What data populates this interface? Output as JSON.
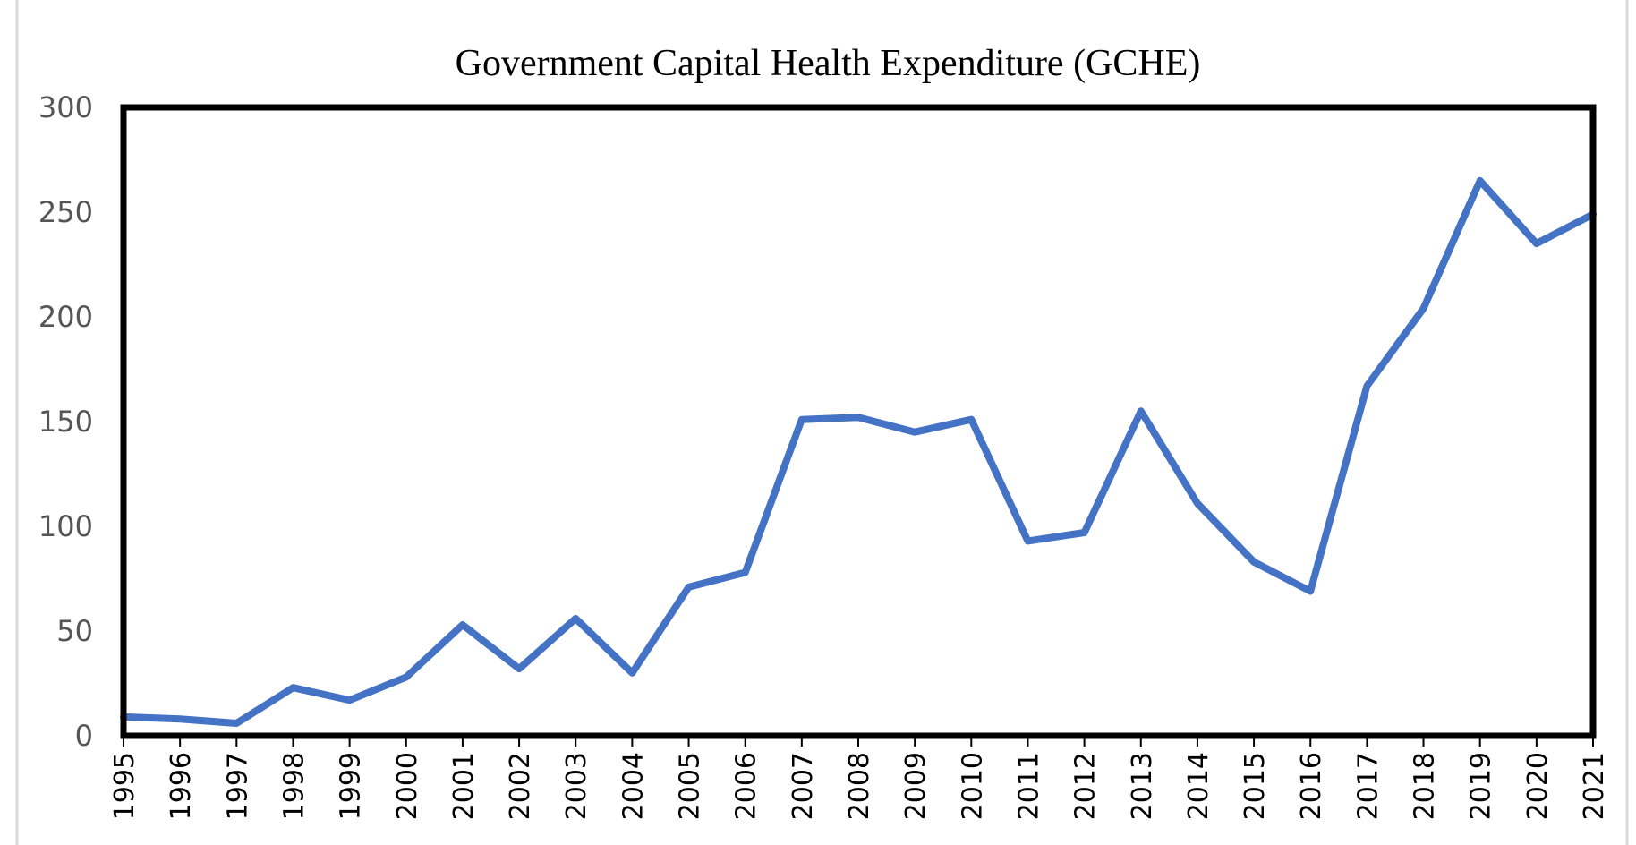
{
  "chart_data": {
    "type": "line",
    "title": "Government Capital Health Expenditure (GCHE)",
    "xlabel": "",
    "ylabel": "",
    "ylim": [
      0,
      300
    ],
    "yticks": [
      0,
      50,
      100,
      150,
      200,
      250,
      300
    ],
    "grid": false,
    "legend": "none",
    "categories": [
      "1995",
      "1996",
      "1997",
      "1998",
      "1999",
      "2000",
      "2001",
      "2002",
      "2003",
      "2004",
      "2005",
      "2006",
      "2007",
      "2008",
      "2009",
      "2010",
      "2011",
      "2012",
      "2013",
      "2014",
      "2015",
      "2016",
      "2017",
      "2018",
      "2019",
      "2020",
      "2021"
    ],
    "series": [
      {
        "values": [
          9,
          8,
          6,
          23,
          17,
          28,
          53,
          32,
          56,
          30,
          71,
          78,
          151,
          152,
          145,
          151,
          93,
          97,
          155,
          111,
          83,
          69,
          167,
          204,
          265,
          235,
          249
        ],
        "color": "#4472C4"
      }
    ],
    "frame_color": "#000000"
  }
}
